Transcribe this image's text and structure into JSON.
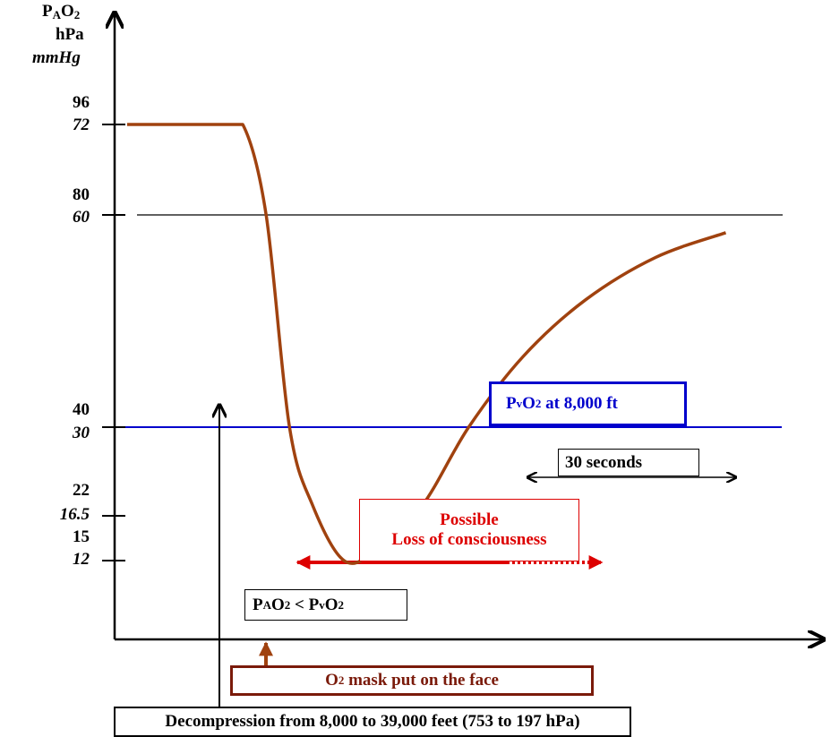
{
  "chart_data": {
    "type": "line",
    "ylabel": {
      "line1_main": "P",
      "line1_sub": "A",
      "line1_main2": "O",
      "line1_sub2": "2",
      "line2": "hPa",
      "line3": "mmHg"
    },
    "y_ticks": [
      {
        "hpa": "96",
        "mmhg": "72",
        "value_mmhg": 72
      },
      {
        "hpa": "80",
        "mmhg": "60",
        "value_mmhg": 60
      },
      {
        "hpa": "40",
        "mmhg": "30",
        "value_mmhg": 30
      },
      {
        "hpa": "22",
        "mmhg": "16.5",
        "value_mmhg": 16.5
      },
      {
        "hpa": "15",
        "mmhg": "12",
        "value_mmhg": 12
      }
    ],
    "series": [
      {
        "color": "#a0420f",
        "x": [
          0,
          0.3,
          0.6,
          0.9,
          1.2,
          1.6,
          2.0,
          2.6,
          3.2,
          3.9,
          4.7,
          5.6,
          6.5
        ],
        "y": [
          72,
          72,
          60,
          30,
          18,
          12,
          13,
          18,
          30,
          40,
          48,
          54,
          57.5
        ]
      }
    ],
    "reference_lines": [
      {
        "y": 60,
        "color": "#000000"
      },
      {
        "y": 30,
        "color": "#0000cc"
      }
    ],
    "annotations": {
      "pvo2_label": {
        "main": "P",
        "sub1": "v",
        "main2": "O",
        "sub2": "2",
        "rest": " at 8,000 ft",
        "color": "#0000cc"
      },
      "seconds_label": "30 seconds",
      "loss_line1": "Possible",
      "loss_line2": "Loss of consciousness",
      "loss_color": "#dd0000",
      "compare_label": {
        "a": "P",
        "a_sub": "A",
        "b": "O",
        "b_sub": "2",
        "lt": " < P",
        "c_sub": "v",
        "d": "O",
        "d_sub": "2"
      },
      "mask_label": {
        "a": "O",
        "a_sub": "2",
        "rest": " mask put on the face",
        "color": "#7a1a0a"
      },
      "decompression_label": "Decompression from 8,000 to 39,000 feet (753 to 197 hPa)"
    },
    "grid": false
  }
}
